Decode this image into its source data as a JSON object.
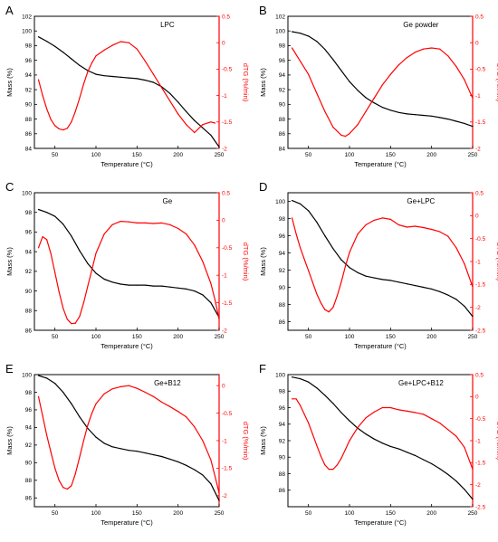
{
  "colors": {
    "mass": "#000000",
    "dtg": "#ff0000",
    "axis": "#000000"
  },
  "chart_data": [
    {
      "panel": "A",
      "title": "LPC",
      "type": "line",
      "xlabel": "Temperature (°C)",
      "ylabel": "Mass (%)",
      "y2label": "dTG (%/min)",
      "xlim": [
        25,
        250
      ],
      "ylim": [
        84,
        102
      ],
      "y2lim": [
        -2.0,
        0.5
      ],
      "xticks": [
        50,
        100,
        150,
        200,
        250
      ],
      "yticks": [
        84,
        86,
        88,
        90,
        92,
        94,
        96,
        98,
        100,
        102
      ],
      "y2ticks": [
        -2.0,
        -1.5,
        -1.0,
        -0.5,
        0.0,
        0.5
      ],
      "series": [
        {
          "axis": "left",
          "color": "#000000",
          "x": [
            30,
            40,
            50,
            60,
            70,
            80,
            90,
            100,
            110,
            120,
            130,
            140,
            150,
            160,
            170,
            180,
            190,
            200,
            210,
            220,
            230,
            240,
            250
          ],
          "y": [
            99.2,
            98.6,
            97.9,
            97.1,
            96.2,
            95.3,
            94.6,
            94.1,
            93.9,
            93.8,
            93.7,
            93.6,
            93.5,
            93.3,
            93.0,
            92.4,
            91.5,
            90.3,
            89.0,
            87.8,
            86.8,
            85.8,
            84.2
          ]
        },
        {
          "axis": "right",
          "color": "#ff0000",
          "x": [
            30,
            35,
            40,
            45,
            50,
            55,
            60,
            65,
            70,
            75,
            80,
            85,
            90,
            95,
            100,
            110,
            120,
            130,
            140,
            150,
            160,
            170,
            180,
            190,
            200,
            210,
            220,
            230,
            240,
            245
          ],
          "y": [
            -0.7,
            -1.0,
            -1.25,
            -1.45,
            -1.57,
            -1.63,
            -1.65,
            -1.62,
            -1.5,
            -1.3,
            -1.05,
            -0.78,
            -0.55,
            -0.38,
            -0.25,
            -0.14,
            -0.05,
            0.02,
            0.0,
            -0.12,
            -0.35,
            -0.6,
            -0.85,
            -1.1,
            -1.35,
            -1.55,
            -1.7,
            -1.55,
            -1.5,
            -1.52
          ]
        }
      ]
    },
    {
      "panel": "B",
      "title": "Ge powder",
      "type": "line",
      "xlabel": "Temperature (°C)",
      "ylabel": "Mass (%)",
      "y2label": "dTG (%/min)",
      "xlim": [
        25,
        250
      ],
      "ylim": [
        84,
        102
      ],
      "y2lim": [
        -2.0,
        0.5
      ],
      "xticks": [
        50,
        100,
        150,
        200,
        250
      ],
      "yticks": [
        84,
        86,
        88,
        90,
        92,
        94,
        96,
        98,
        100,
        102
      ],
      "y2ticks": [
        -2.0,
        -1.5,
        -1.0,
        -0.5,
        0.0,
        0.5
      ],
      "series": [
        {
          "axis": "left",
          "color": "#000000",
          "x": [
            30,
            40,
            50,
            60,
            70,
            80,
            90,
            100,
            110,
            120,
            130,
            140,
            150,
            160,
            170,
            180,
            190,
            200,
            210,
            220,
            230,
            240,
            250
          ],
          "y": [
            99.9,
            99.7,
            99.3,
            98.6,
            97.5,
            96.1,
            94.6,
            93.1,
            91.9,
            90.9,
            90.2,
            89.6,
            89.2,
            88.9,
            88.7,
            88.6,
            88.5,
            88.4,
            88.2,
            88.0,
            87.7,
            87.4,
            87.0
          ]
        },
        {
          "axis": "right",
          "color": "#ff0000",
          "x": [
            30,
            40,
            50,
            60,
            70,
            80,
            90,
            95,
            100,
            110,
            120,
            130,
            140,
            150,
            160,
            170,
            180,
            190,
            200,
            210,
            220,
            230,
            240,
            250
          ],
          "y": [
            -0.1,
            -0.35,
            -0.6,
            -0.95,
            -1.3,
            -1.6,
            -1.75,
            -1.77,
            -1.72,
            -1.55,
            -1.3,
            -1.05,
            -0.8,
            -0.6,
            -0.42,
            -0.28,
            -0.18,
            -0.12,
            -0.1,
            -0.12,
            -0.25,
            -0.45,
            -0.7,
            -1.05
          ]
        }
      ]
    },
    {
      "panel": "C",
      "title": "Ge",
      "type": "line",
      "xlabel": "Temperature (°C)",
      "ylabel": "Mass (%)",
      "y2label": "dTG (%/min)",
      "xlim": [
        25,
        250
      ],
      "ylim": [
        86,
        100
      ],
      "y2lim": [
        -2.0,
        0.5
      ],
      "xticks": [
        50,
        100,
        150,
        200,
        250
      ],
      "yticks": [
        86,
        88,
        90,
        92,
        94,
        96,
        98,
        100
      ],
      "y2ticks": [
        -2.0,
        -1.5,
        -1.0,
        -0.5,
        0.0,
        0.5
      ],
      "series": [
        {
          "axis": "left",
          "color": "#000000",
          "x": [
            30,
            40,
            50,
            60,
            70,
            80,
            90,
            100,
            110,
            120,
            130,
            140,
            150,
            160,
            170,
            180,
            190,
            200,
            210,
            220,
            230,
            240,
            250
          ],
          "y": [
            98.3,
            98.0,
            97.6,
            96.8,
            95.6,
            94.1,
            92.8,
            91.8,
            91.2,
            90.9,
            90.7,
            90.6,
            90.6,
            90.6,
            90.5,
            90.5,
            90.4,
            90.3,
            90.2,
            90.0,
            89.6,
            88.8,
            87.3
          ]
        },
        {
          "axis": "right",
          "color": "#ff0000",
          "x": [
            30,
            35,
            40,
            45,
            50,
            55,
            60,
            65,
            70,
            75,
            80,
            85,
            90,
            95,
            100,
            110,
            120,
            130,
            140,
            150,
            160,
            170,
            180,
            190,
            200,
            210,
            220,
            230,
            240,
            245,
            250
          ],
          "y": [
            -0.5,
            -0.3,
            -0.35,
            -0.6,
            -0.95,
            -1.3,
            -1.6,
            -1.8,
            -1.88,
            -1.87,
            -1.75,
            -1.5,
            -1.2,
            -0.9,
            -0.6,
            -0.25,
            -0.08,
            -0.02,
            -0.03,
            -0.05,
            -0.05,
            -0.06,
            -0.05,
            -0.08,
            -0.15,
            -0.25,
            -0.45,
            -0.75,
            -1.15,
            -1.45,
            -1.8
          ]
        }
      ]
    },
    {
      "panel": "D",
      "title": "Ge+LPC",
      "type": "line",
      "xlabel": "Temperature (°C)",
      "ylabel": "Mass (%)",
      "y2label": "dTG (%/min)",
      "xlim": [
        25,
        250
      ],
      "ylim": [
        85,
        101
      ],
      "y2lim": [
        -2.5,
        0.5
      ],
      "xticks": [
        50,
        100,
        150,
        200,
        250
      ],
      "yticks": [
        86,
        88,
        90,
        92,
        94,
        96,
        98,
        100
      ],
      "y2ticks": [
        -2.5,
        -2.0,
        -1.5,
        -1.0,
        -0.5,
        0.0,
        0.5
      ],
      "series": [
        {
          "axis": "left",
          "color": "#000000",
          "x": [
            30,
            40,
            50,
            60,
            70,
            80,
            90,
            100,
            110,
            120,
            130,
            140,
            150,
            160,
            170,
            180,
            190,
            200,
            210,
            220,
            230,
            240,
            250
          ],
          "y": [
            100.1,
            99.7,
            98.9,
            97.6,
            96.0,
            94.5,
            93.2,
            92.3,
            91.7,
            91.3,
            91.1,
            90.9,
            90.8,
            90.6,
            90.4,
            90.2,
            90.0,
            89.8,
            89.5,
            89.1,
            88.6,
            87.8,
            86.6
          ]
        },
        {
          "axis": "right",
          "color": "#ff0000",
          "x": [
            30,
            35,
            40,
            45,
            50,
            55,
            60,
            65,
            70,
            75,
            80,
            85,
            90,
            95,
            100,
            110,
            120,
            130,
            140,
            150,
            160,
            170,
            180,
            190,
            200,
            210,
            220,
            230,
            240,
            250
          ],
          "y": [
            -0.05,
            -0.4,
            -0.7,
            -0.95,
            -1.2,
            -1.45,
            -1.7,
            -1.9,
            -2.05,
            -2.1,
            -2.0,
            -1.75,
            -1.45,
            -1.1,
            -0.8,
            -0.4,
            -0.2,
            -0.1,
            -0.05,
            -0.08,
            -0.2,
            -0.25,
            -0.23,
            -0.26,
            -0.3,
            -0.35,
            -0.45,
            -0.7,
            -1.05,
            -1.55
          ]
        }
      ]
    },
    {
      "panel": "E",
      "title": "Ge+B12",
      "type": "line",
      "xlabel": "Temperature (°C)",
      "ylabel": "Mass (%)",
      "y2label": "dTG (%/min)",
      "xlim": [
        25,
        250
      ],
      "ylim": [
        85,
        100
      ],
      "y2lim": [
        -2.2,
        0.2
      ],
      "xticks": [
        50,
        100,
        150,
        200,
        250
      ],
      "yticks": [
        86,
        88,
        90,
        92,
        94,
        96,
        98,
        100
      ],
      "y2ticks": [
        -2.0,
        -1.5,
        -1.0,
        -0.5,
        0.0
      ],
      "series": [
        {
          "axis": "left",
          "color": "#000000",
          "x": [
            30,
            40,
            50,
            60,
            70,
            80,
            90,
            100,
            110,
            120,
            130,
            140,
            150,
            160,
            170,
            180,
            190,
            200,
            210,
            220,
            230,
            240,
            250
          ],
          "y": [
            99.9,
            99.6,
            99.0,
            98.0,
            96.7,
            95.2,
            93.9,
            92.9,
            92.2,
            91.8,
            91.6,
            91.4,
            91.3,
            91.1,
            90.9,
            90.7,
            90.4,
            90.1,
            89.7,
            89.2,
            88.6,
            87.6,
            85.7
          ]
        },
        {
          "axis": "right",
          "color": "#ff0000",
          "x": [
            30,
            35,
            40,
            45,
            50,
            55,
            60,
            65,
            70,
            75,
            80,
            85,
            90,
            95,
            100,
            110,
            120,
            130,
            140,
            150,
            160,
            170,
            180,
            190,
            200,
            210,
            220,
            230,
            240,
            245,
            250
          ],
          "y": [
            -0.2,
            -0.55,
            -0.9,
            -1.2,
            -1.5,
            -1.72,
            -1.85,
            -1.88,
            -1.82,
            -1.6,
            -1.3,
            -1.0,
            -0.72,
            -0.5,
            -0.33,
            -0.15,
            -0.06,
            -0.02,
            0.0,
            -0.05,
            -0.12,
            -0.2,
            -0.3,
            -0.38,
            -0.47,
            -0.57,
            -0.75,
            -1.0,
            -1.35,
            -1.65,
            -1.95
          ]
        }
      ]
    },
    {
      "panel": "F",
      "title": "Ge+LPC+B12",
      "type": "line",
      "xlabel": "Temperature (°C)",
      "ylabel": "Mass (%)",
      "y2label": "dTG (%/min)",
      "xlim": [
        25,
        250
      ],
      "ylim": [
        84,
        100
      ],
      "y2lim": [
        -2.5,
        0.5
      ],
      "xticks": [
        50,
        100,
        150,
        200,
        250
      ],
      "yticks": [
        86,
        88,
        90,
        92,
        94,
        96,
        98,
        100
      ],
      "y2ticks": [
        -2.5,
        -2.0,
        -1.5,
        -1.0,
        -0.5,
        0.0,
        0.5
      ],
      "series": [
        {
          "axis": "left",
          "color": "#000000",
          "x": [
            30,
            40,
            50,
            60,
            70,
            80,
            90,
            100,
            110,
            120,
            130,
            140,
            150,
            160,
            170,
            180,
            190,
            200,
            210,
            220,
            230,
            240,
            250
          ],
          "y": [
            99.7,
            99.5,
            99.1,
            98.4,
            97.5,
            96.5,
            95.4,
            94.4,
            93.5,
            92.8,
            92.2,
            91.7,
            91.3,
            91.0,
            90.6,
            90.2,
            89.7,
            89.2,
            88.6,
            87.9,
            87.1,
            86.1,
            84.9
          ]
        },
        {
          "axis": "right",
          "color": "#ff0000",
          "x": [
            30,
            35,
            40,
            45,
            50,
            55,
            60,
            65,
            70,
            75,
            80,
            85,
            90,
            95,
            100,
            110,
            120,
            130,
            140,
            150,
            160,
            170,
            180,
            190,
            200,
            210,
            220,
            230,
            240,
            250
          ],
          "y": [
            -0.05,
            -0.05,
            -0.2,
            -0.4,
            -0.6,
            -0.85,
            -1.1,
            -1.35,
            -1.55,
            -1.65,
            -1.65,
            -1.55,
            -1.4,
            -1.2,
            -1.0,
            -0.7,
            -0.48,
            -0.35,
            -0.25,
            -0.25,
            -0.3,
            -0.33,
            -0.36,
            -0.4,
            -0.5,
            -0.6,
            -0.75,
            -0.9,
            -1.15,
            -1.65
          ]
        }
      ]
    }
  ]
}
